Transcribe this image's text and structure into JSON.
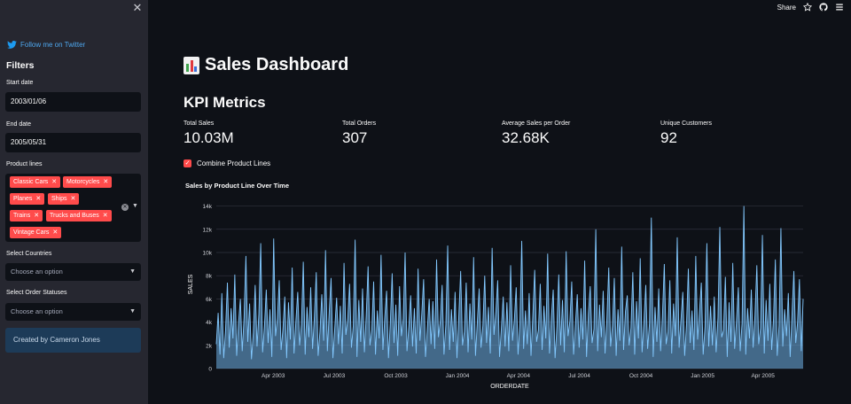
{
  "sidebar": {
    "close_label": "✕",
    "twitter_label": "Follow me on Twitter",
    "filters_title": "Filters",
    "start_date_label": "Start date",
    "start_date_value": "2003/01/06",
    "end_date_label": "End date",
    "end_date_value": "2005/05/31",
    "product_lines_label": "Product lines",
    "product_lines": [
      "Classic Cars",
      "Motorcycles",
      "Planes",
      "Ships",
      "Trains",
      "Trucks and Buses",
      "Vintage Cars"
    ],
    "countries_label": "Select Countries",
    "countries_placeholder": "Choose an option",
    "statuses_label": "Select Order Statuses",
    "statuses_placeholder": "Choose an option",
    "credit": "Created by Cameron Jones"
  },
  "header": {
    "share_label": "Share"
  },
  "main": {
    "title": "Sales Dashboard",
    "kpi_heading": "KPI Metrics",
    "kpis": [
      {
        "label": "Total Sales",
        "value": "10.03M"
      },
      {
        "label": "Total Orders",
        "value": "307"
      },
      {
        "label": "Average Sales per Order",
        "value": "32.68K"
      },
      {
        "label": "Unique Customers",
        "value": "92"
      }
    ],
    "combine_label": "Combine Product Lines",
    "combine_checked": true
  },
  "chart_data": {
    "type": "area",
    "title": "Sales by Product Line Over Time",
    "xlabel": "ORDERDATE",
    "ylabel": "SALES",
    "x_ticks": [
      "Apr 2003",
      "Jul 2003",
      "Oct 2003",
      "Jan 2004",
      "Apr 2004",
      "Jul 2004",
      "Oct 2004",
      "Jan 2005",
      "Apr 2005"
    ],
    "y_ticks": [
      "0",
      "2k",
      "4k",
      "6k",
      "8k",
      "10k",
      "12k",
      "14k"
    ],
    "ylim": [
      0,
      14500
    ],
    "x_range": [
      "2003-01-06",
      "2005-05-31"
    ],
    "fill_color": "#6fb3e8",
    "line_color": "#83c9ff",
    "values": [
      2100,
      4800,
      1200,
      6500,
      900,
      3300,
      7400,
      1800,
      5200,
      2600,
      8100,
      1100,
      3900,
      6000,
      1500,
      4400,
      9700,
      2300,
      5600,
      800,
      3100,
      7200,
      1900,
      4700,
      10800,
      1400,
      3600,
      6800,
      2200,
      5100,
      1000,
      11200,
      2800,
      4300,
      7600,
      1600,
      3400,
      6200,
      900,
      5700,
      2500,
      8700,
      1300,
      4100,
      6600,
      2000,
      3800,
      9200,
      1200,
      5300,
      2700,
      7000,
      1700,
      4500,
      8300,
      1100,
      3200,
      6400,
      2400,
      10200,
      1500,
      4900,
      7800,
      900,
      3500,
      6100,
      2100,
      5400,
      1300,
      9100,
      2900,
      4200,
      7300,
      1800,
      3700,
      11100,
      1000,
      5900,
      2300,
      6900,
      1400,
      4600,
      8800,
      2000,
      3300,
      7500,
      1200,
      5000,
      2600,
      9800,
      1600,
      4400,
      6700,
      900,
      3900,
      8200,
      2200,
      5500,
      1100,
      7100,
      2800,
      4300,
      10000,
      1500,
      3600,
      6300,
      1900,
      5200,
      1300,
      8600,
      2400,
      4700,
      7700,
      1000,
      3400,
      6000,
      2100,
      5800,
      1700,
      9400,
      2700,
      4100,
      7200,
      1200,
      3800,
      10600,
      1600,
      5100,
      2300,
      6600,
      900,
      4500,
      8400,
      2000,
      3200,
      7400,
      1400,
      5600,
      2500,
      9600,
      1100,
      4000,
      6900,
      1800,
      3700,
      8000,
      2200,
      5300,
      1300,
      10400,
      2900,
      4800,
      7600,
      1000,
      3500,
      6200,
      1900,
      5700,
      1500,
      8900,
      2400,
      4200,
      7000,
      1200,
      3900,
      11000,
      1700,
      5000,
      2100,
      6500,
      1100,
      4600,
      8500,
      2300,
      3300,
      7300,
      1600,
      5400,
      2600,
      9900,
      1300,
      4400,
      6800,
      900,
      3600,
      8100,
      2000,
      5900,
      1400,
      10100,
      2800,
      4100,
      7500,
      1200,
      3800,
      6400,
      1800,
      5200,
      2500,
      9300,
      1000,
      4700,
      7100,
      2200,
      3400,
      12000,
      1500,
      5500,
      2700,
      6700,
      1300,
      4300,
      8700,
      1900,
      3700,
      7800,
      1100,
      5100,
      2400,
      10500,
      1600,
      4900,
      6300,
      2000,
      3500,
      8300,
      1200,
      5800,
      2600,
      9500,
      1400,
      4000,
      7200,
      1700,
      3900,
      13000,
      1000,
      5300,
      2300,
      6900,
      1500,
      4500,
      9000,
      2100,
      3200,
      7600,
      1300,
      5600,
      2800,
      11300,
      1800,
      4200,
      6600,
      1100,
      3800,
      8600,
      2200,
      5000,
      1600,
      9700,
      2500,
      4800,
      7400,
      1200,
      3600,
      10800,
      1900,
      5400,
      2000,
      6200,
      1400,
      4400,
      12200,
      2700,
      3300,
      7900,
      1000,
      5700,
      2300,
      9100,
      1700,
      4100,
      7000,
      1500,
      3900,
      14000,
      1200,
      5200,
      2600,
      6800,
      1800,
      4600,
      8900,
      2100,
      3500,
      11500,
      1300,
      5900,
      2400,
      7300,
      1600,
      4300,
      9400,
      1100,
      3700,
      12100,
      1900,
      5100,
      2800,
      6500,
      1000,
      4700,
      8400,
      2200,
      4000,
      7700,
      1500,
      6000
    ]
  }
}
